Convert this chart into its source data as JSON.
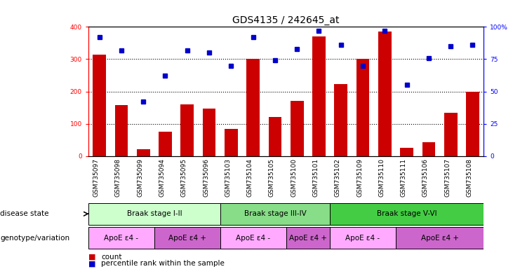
{
  "title": "GDS4135 / 242645_at",
  "samples": [
    "GSM735097",
    "GSM735098",
    "GSM735099",
    "GSM735094",
    "GSM735095",
    "GSM735096",
    "GSM735103",
    "GSM735104",
    "GSM735105",
    "GSM735100",
    "GSM735101",
    "GSM735102",
    "GSM735109",
    "GSM735110",
    "GSM735111",
    "GSM735106",
    "GSM735107",
    "GSM735108"
  ],
  "counts": [
    315,
    157,
    22,
    75,
    160,
    148,
    85,
    300,
    122,
    170,
    370,
    222,
    300,
    385,
    25,
    42,
    135,
    200
  ],
  "percentile_ranks": [
    92,
    82,
    42,
    62,
    82,
    80,
    70,
    92,
    74,
    83,
    97,
    86,
    70,
    97,
    55,
    76,
    85,
    86
  ],
  "left_ylim": [
    0,
    400
  ],
  "right_ylim": [
    0,
    100
  ],
  "left_yticks": [
    0,
    100,
    200,
    300,
    400
  ],
  "right_yticks": [
    0,
    25,
    50,
    75,
    100
  ],
  "right_yticklabels": [
    "0",
    "25",
    "50",
    "75",
    "100%"
  ],
  "bar_color": "#cc0000",
  "dot_color": "#0000cc",
  "disease_state_label": "disease state",
  "genotype_label": "genotype/variation",
  "disease_stages": [
    {
      "label": "Braak stage I-II",
      "start": 0,
      "end": 6,
      "color": "#ccffcc"
    },
    {
      "label": "Braak stage III-IV",
      "start": 6,
      "end": 11,
      "color": "#88dd88"
    },
    {
      "label": "Braak stage V-VI",
      "start": 11,
      "end": 18,
      "color": "#44cc44"
    }
  ],
  "genotype_groups": [
    {
      "label": "ApoE ε4 -",
      "start": 0,
      "end": 3,
      "color": "#ffaaff"
    },
    {
      "label": "ApoE ε4 +",
      "start": 3,
      "end": 6,
      "color": "#cc66cc"
    },
    {
      "label": "ApoE ε4 -",
      "start": 6,
      "end": 9,
      "color": "#ffaaff"
    },
    {
      "label": "ApoE ε4 +",
      "start": 9,
      "end": 11,
      "color": "#cc66cc"
    },
    {
      "label": "ApoE ε4 -",
      "start": 11,
      "end": 14,
      "color": "#ffaaff"
    },
    {
      "label": "ApoE ε4 +",
      "start": 14,
      "end": 18,
      "color": "#cc66cc"
    }
  ],
  "legend_count_color": "#cc0000",
  "legend_dot_color": "#0000cc",
  "background_color": "#ffffff",
  "title_fontsize": 10,
  "tick_label_fontsize": 6.5,
  "annotation_fontsize": 7.5
}
